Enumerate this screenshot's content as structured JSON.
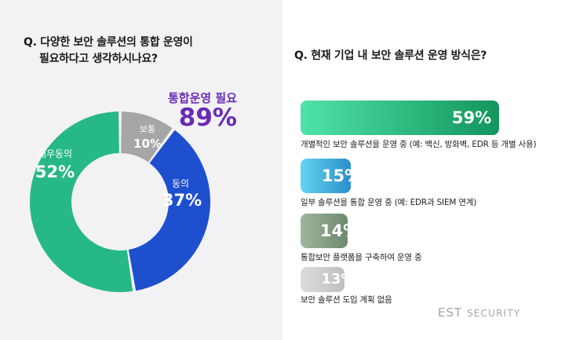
{
  "left": {
    "question_line1": "Q. 다양한 보안 솔루션의 통합 운영이",
    "question_line2": "필요하다고 생각하시나요?",
    "highlight_label": "통합운영 필요",
    "highlight_value": "89%"
  },
  "right": {
    "question": "Q. 현재 기업 내 보안 솔루션 운영 방식은?"
  },
  "brand": {
    "main": "EST",
    "sub": "SECURITY"
  },
  "chart_data": [
    {
      "type": "pie",
      "title": "Q. 다양한 보안 솔루션의 통합 운영이 필요하다고 생각하시나요?",
      "slices": [
        {
          "label": "보통",
          "value": 10,
          "value_label": "10%",
          "color": "#a6a6a6"
        },
        {
          "label": "동의",
          "value": 37,
          "value_label": "37%",
          "color": "#1e4fcf"
        },
        {
          "label": "매우동의",
          "value": 52,
          "value_label": "52%",
          "color": "#27b985"
        }
      ]
    },
    {
      "type": "bar",
      "title": "Q. 현재 기업 내 보안 솔루션 운영 방식은?",
      "orientation": "horizontal",
      "categories": [
        "개별적인 보안 솔루션을 운영 중 (예: 백신, 방화벽, EDR 등 개별 사용)",
        "일부 솔루션을 통합 운영 중 (예: EDR과 SIEM 연계)",
        "통합보안 플랫폼을 구축하여 운영 중",
        "보안 솔루션 도입 계획 없음"
      ],
      "values": [
        59,
        15,
        14,
        13
      ],
      "value_labels": [
        "59%",
        "15%",
        "14%",
        "13%"
      ],
      "colors": [
        [
          "#4fe3a8",
          "#13955c"
        ],
        [
          "#63d3f2",
          "#2b8fc8"
        ],
        [
          "#9fb59f",
          "#6d8a6e"
        ],
        [
          "#dcdcdc",
          "#bfbfbf"
        ]
      ]
    }
  ]
}
